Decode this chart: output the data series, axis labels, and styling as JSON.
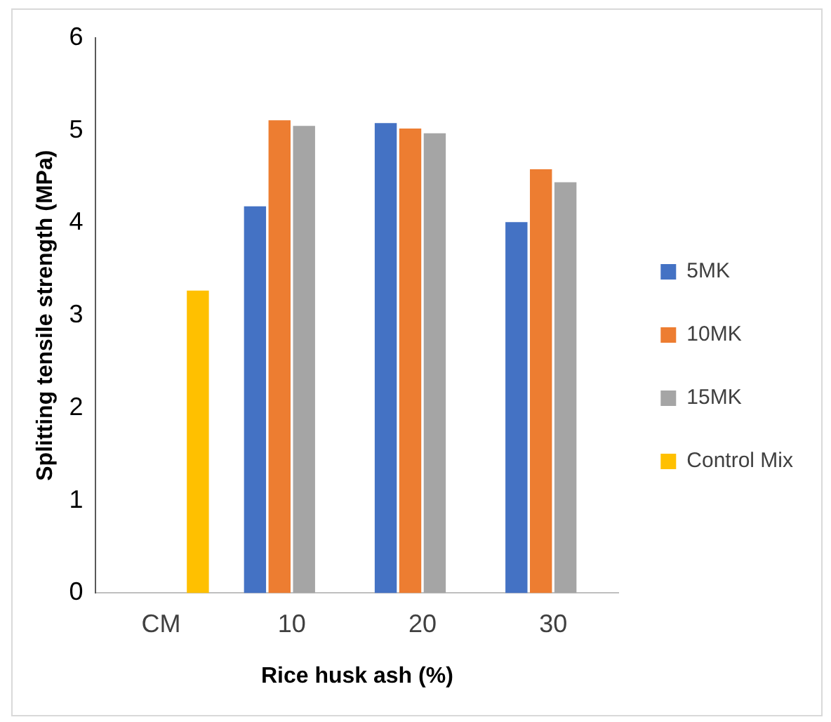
{
  "chart_data": {
    "type": "bar",
    "xlabel": "Rice husk ash (%)",
    "ylabel": "Splitting tensile strength (MPa)",
    "categories": [
      "CM",
      "10",
      "20",
      "30"
    ],
    "series": [
      {
        "name": "5MK",
        "color": "#4472c4",
        "values": [
          null,
          4.18,
          5.08,
          4.01
        ]
      },
      {
        "name": "10MK",
        "color": "#ed7d31",
        "values": [
          null,
          5.11,
          5.02,
          4.58
        ]
      },
      {
        "name": "15MK",
        "color": "#a5a5a5",
        "values": [
          null,
          5.05,
          4.97,
          4.44
        ]
      },
      {
        "name": "Control Mix",
        "color": "#ffc000",
        "values": [
          3.27,
          null,
          null,
          null
        ]
      }
    ],
    "ylim": [
      0,
      6
    ],
    "yticks": [
      0,
      1,
      2,
      3,
      4,
      5,
      6
    ],
    "grid": false,
    "legend": "right"
  }
}
